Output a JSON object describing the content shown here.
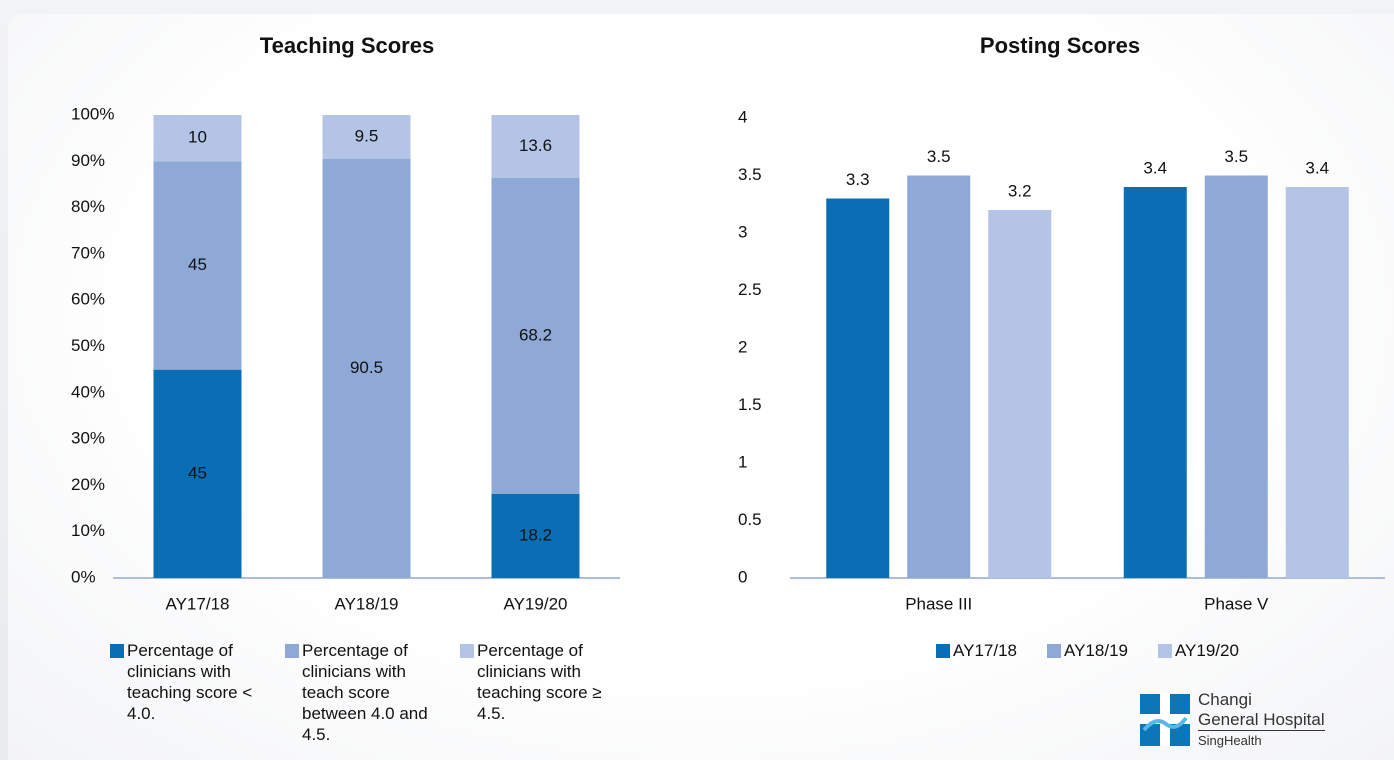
{
  "chart_data": [
    {
      "type": "bar",
      "stacked": true,
      "title": "Teaching Scores",
      "categories": [
        "AY17/18",
        "AY18/19",
        "AY19/20"
      ],
      "series": [
        {
          "name": "Percentage of clinicians with teaching score < 4.0.",
          "color": "#0a6eb4",
          "values": [
            45,
            null,
            18.2
          ]
        },
        {
          "name": "Percentage of clinicians with teach score between 4.0 and 4.5.",
          "color": "#8fa9d6",
          "values": [
            45,
            90.5,
            68.2
          ]
        },
        {
          "name": "Percentage of clinicians with teaching score ≥ 4.5.",
          "color": "#b4c4e6",
          "values": [
            10,
            9.5,
            13.6
          ]
        }
      ],
      "ylim": [
        0,
        100
      ],
      "yticks": [
        {
          "value": 0,
          "label": "0%"
        },
        {
          "value": 10,
          "label": "10%"
        },
        {
          "value": 20,
          "label": "20%"
        },
        {
          "value": 30,
          "label": "30%"
        },
        {
          "value": 40,
          "label": "40%"
        },
        {
          "value": 50,
          "label": "50%"
        },
        {
          "value": 60,
          "label": "60%"
        },
        {
          "value": 70,
          "label": "70%"
        },
        {
          "value": 80,
          "label": "80%"
        },
        {
          "value": 90,
          "label": "90%"
        },
        {
          "value": 100,
          "label": "100%"
        }
      ],
      "grid": false,
      "legend": "bottom"
    },
    {
      "type": "bar",
      "stacked": false,
      "title": "Posting Scores",
      "categories": [
        "Phase III",
        "Phase V"
      ],
      "series": [
        {
          "name": "AY17/18",
          "color": "#0a6eb4",
          "values": [
            3.3,
            3.4
          ]
        },
        {
          "name": "AY18/19",
          "color": "#8fa9d6",
          "values": [
            3.5,
            3.5
          ]
        },
        {
          "name": "AY19/20",
          "color": "#b4c4e6",
          "values": [
            3.2,
            3.4
          ]
        }
      ],
      "ylim": [
        0,
        4
      ],
      "yticks": [
        0,
        0.5,
        1,
        1.5,
        2,
        2.5,
        3,
        3.5,
        4
      ],
      "grid": false,
      "legend": "bottom"
    }
  ],
  "logo": {
    "line1": "Changi",
    "line2": "General Hospital",
    "line3": "SingHealth"
  }
}
